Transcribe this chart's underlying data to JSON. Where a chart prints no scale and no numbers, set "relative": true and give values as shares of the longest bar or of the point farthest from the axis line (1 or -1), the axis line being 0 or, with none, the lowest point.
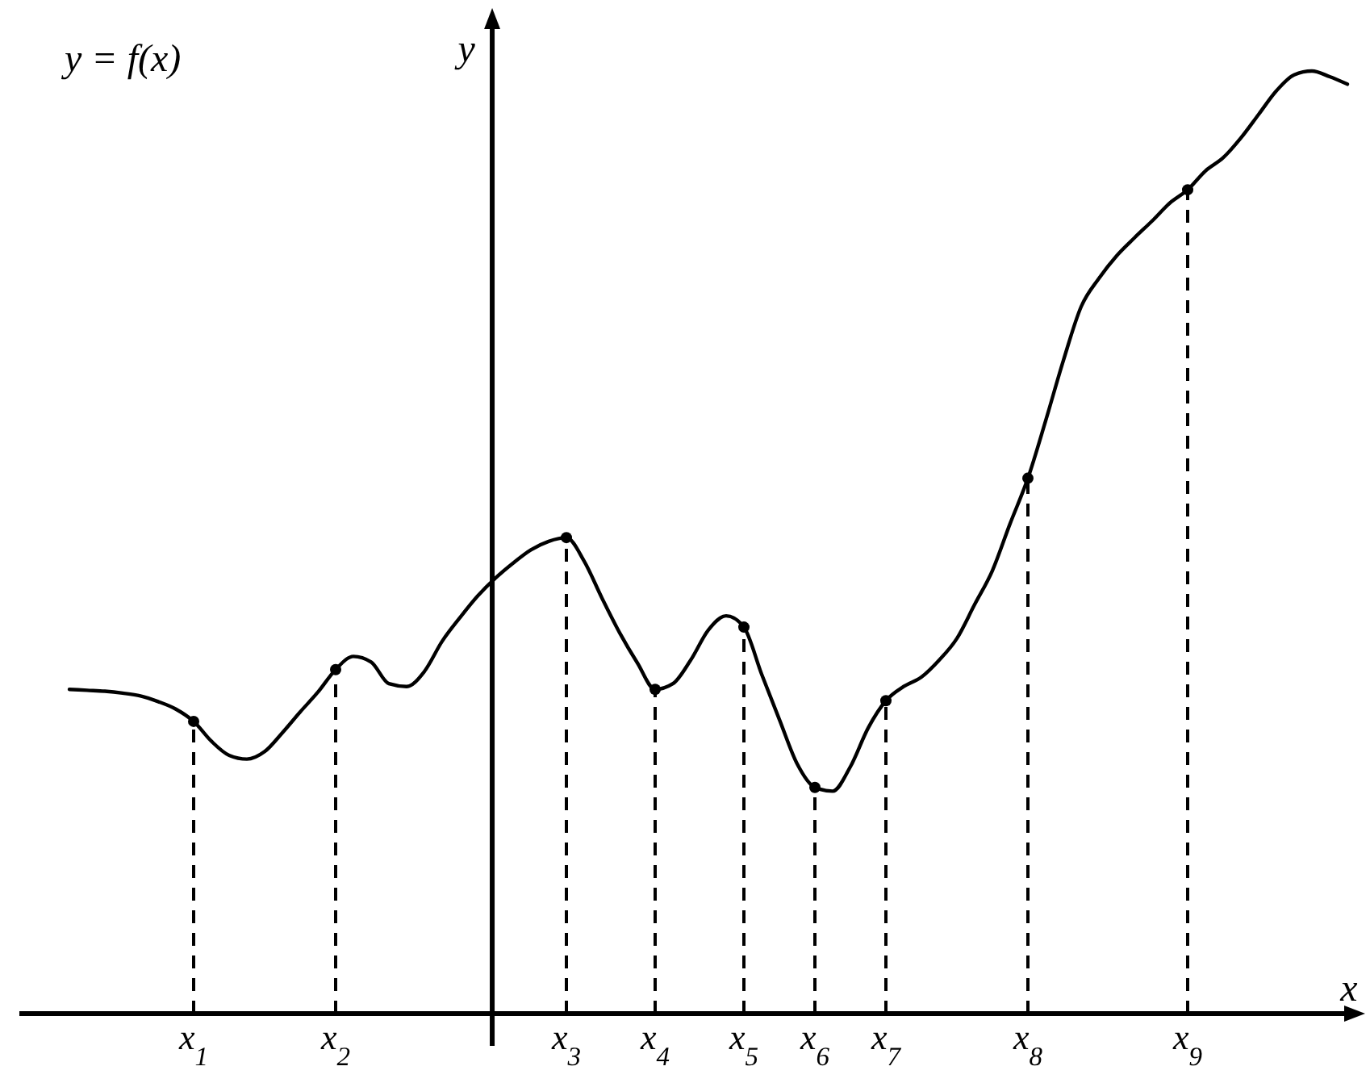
{
  "chart_data": {
    "type": "line",
    "relative": true,
    "xlabel": "x",
    "ylabel": "y",
    "annotations": [
      "y = f(x)"
    ],
    "categories": [
      null,
      null,
      null,
      null,
      null,
      null,
      null,
      "x$_{1}$",
      null,
      null,
      null,
      null,
      null,
      null,
      null,
      "x$_{2}$",
      null,
      null,
      null,
      null,
      null,
      null,
      null,
      null,
      null,
      null,
      null,
      null,
      "x$_{3}$",
      null,
      null,
      null,
      null,
      "x$_{4}$",
      null,
      null,
      null,
      null,
      "x$_{5}$",
      null,
      null,
      null,
      "x$_{6}$",
      null,
      null,
      null,
      "x$_{7}$",
      null,
      null,
      null,
      null,
      null,
      null,
      null,
      "x$_{8}$",
      null,
      null,
      null,
      null,
      null,
      null,
      null,
      null,
      "x$_{9}$",
      null,
      null,
      null,
      null,
      null,
      null,
      null,
      null,
      null
    ],
    "tick_labels": "x",
    "series": [
      {
        "color": "#000000",
        "marker": "none",
        "line_style": "solid",
        "values": [
          0.344,
          0.343,
          0.342,
          0.34,
          0.337,
          0.331,
          0.323,
          0.31,
          0.289,
          0.274,
          0.27,
          0.278,
          0.298,
          0.32,
          0.341,
          0.365,
          0.379,
          0.373,
          0.35,
          0.347,
          0.363,
          0.395,
          0.42,
          0.443,
          0.462,
          0.478,
          0.492,
          0.501,
          0.505,
          0.48,
          0.441,
          0.404,
          0.372,
          0.344,
          0.35,
          0.375,
          0.407,
          0.422,
          0.41,
          0.36,
          0.312,
          0.265,
          0.24,
          0.236,
          0.262,
          0.303,
          0.332,
          0.347,
          0.357,
          0.375,
          0.398,
          0.434,
          0.47,
          0.52,
          0.568,
          0.629,
          0.693,
          0.75,
          0.78,
          0.804,
          0.823,
          0.841,
          0.86,
          0.874,
          0.894,
          0.908,
          0.929,
          0.954,
          0.979,
          0.996,
          1.0,
          0.994,
          0.986
        ]
      },
      {
        "type": "lollipop",
        "color": "#000000",
        "marker": "circle",
        "line_style": "dashed",
        "values": [
          null,
          null,
          null,
          null,
          null,
          null,
          null,
          0.31,
          null,
          null,
          null,
          null,
          null,
          null,
          null,
          0.365,
          null,
          null,
          null,
          null,
          null,
          null,
          null,
          null,
          null,
          null,
          null,
          null,
          0.505,
          null,
          null,
          null,
          null,
          0.344,
          null,
          null,
          null,
          null,
          0.41,
          null,
          null,
          null,
          0.24,
          null,
          null,
          null,
          0.332,
          null,
          null,
          null,
          null,
          null,
          null,
          null,
          0.568,
          null,
          null,
          null,
          null,
          null,
          null,
          null,
          null,
          0.874,
          null,
          null,
          null,
          null,
          null,
          null,
          null,
          null,
          null
        ]
      }
    ]
  }
}
